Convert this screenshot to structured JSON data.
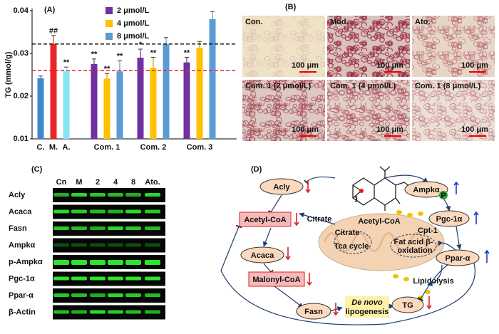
{
  "chart_data": {
    "type": "bar",
    "panel_label": "(A)",
    "y_label": "TG (mmol/g)",
    "categories": [
      "C.",
      "M.",
      "A.",
      "Com. 1",
      "Com. 2",
      "Com. 3"
    ],
    "ylim": [
      0.01,
      0.04
    ],
    "yticks": [
      0.01,
      0.02,
      0.03,
      0.04
    ],
    "control_values": [
      0.0242,
      0.0322,
      0.0258,
      null,
      null,
      null
    ],
    "control_errors": [
      0.0005,
      0.002,
      0.001,
      null,
      null,
      null
    ],
    "control_colors": [
      "#3f88cc",
      "#e8262a",
      "#84e4f2",
      null,
      null,
      null
    ],
    "control_marks": [
      null,
      "##",
      "**",
      null,
      null,
      null
    ],
    "series": [
      {
        "name": "2 μmol/L",
        "color": "#7030a0",
        "values": [
          null,
          null,
          null,
          0.0275,
          0.029,
          0.0279
        ],
        "errors": [
          null,
          null,
          null,
          0.0012,
          0.002,
          0.0012
        ],
        "marks": [
          null,
          null,
          null,
          "**",
          "*",
          "**"
        ]
      },
      {
        "name": "4 μmol/L",
        "color": "#ffc000",
        "values": [
          null,
          null,
          null,
          0.0241,
          0.0266,
          0.0313
        ],
        "errors": [
          null,
          null,
          null,
          0.0012,
          0.0025,
          0.0015
        ],
        "marks": [
          null,
          null,
          null,
          "**",
          "**",
          null
        ]
      },
      {
        "name": "8 μmol/L",
        "color": "#5b9bd5",
        "values": [
          null,
          null,
          null,
          0.0258,
          0.0322,
          0.038
        ],
        "errors": [
          null,
          null,
          null,
          0.0025,
          0.0015,
          0.0018
        ],
        "marks": [
          null,
          null,
          null,
          "**",
          null,
          null
        ]
      }
    ],
    "reference_lines": [
      {
        "value": 0.0322,
        "color": "#000000"
      },
      {
        "value": 0.026,
        "color": "#e8262a"
      }
    ]
  },
  "panel_b": {
    "label": "(B)",
    "images": [
      {
        "title": "Con.",
        "scale": "100 μm"
      },
      {
        "title": "Mod.",
        "scale": "100 μm"
      },
      {
        "title": "Ato.",
        "scale": "100 μm"
      },
      {
        "title": "Com. 1 (2 μmol/L)",
        "scale": "100 μm"
      },
      {
        "title": "Com. 1 (4 μmol/L)",
        "scale": "100 μm"
      },
      {
        "title": "Com. 1 (8 μmol/L)",
        "scale": "100 μm"
      }
    ]
  },
  "panel_c": {
    "label": "(C)",
    "columns": [
      "Cn",
      "M",
      "2",
      "4",
      "8",
      "Ato."
    ],
    "rows": [
      "Acly",
      "Acaca",
      "Fasn",
      "Ampkα",
      "p-Ampkα",
      "Pgc-1α",
      "Ppar-α",
      "β-Actin"
    ]
  },
  "panel_d": {
    "label": "(D)",
    "compound": "1",
    "phospho": "P",
    "nodes": {
      "acly": "Acly",
      "acetyl": "Acetyl-CoA",
      "acaca": "Acaca",
      "malonyl": "Malonyl-CoA",
      "fasn": "Fasn",
      "tg": "TG",
      "ampk": "Ampkα",
      "pgc": "Pgc-1α",
      "ppar": "Ppar-α"
    },
    "texts": {
      "citrate_out": "Citrate",
      "citrate_in": "Citrate",
      "acetyl_in": "Acetyl-CoA",
      "tca": "Tca cycle",
      "cpt": "Cpt-1",
      "fao": [
        "Fat acid β-",
        "oxidation"
      ],
      "lipidolysis": "Lipidolysis",
      "lipogenesis": [
        "De novo",
        "lipogenesis"
      ]
    }
  }
}
